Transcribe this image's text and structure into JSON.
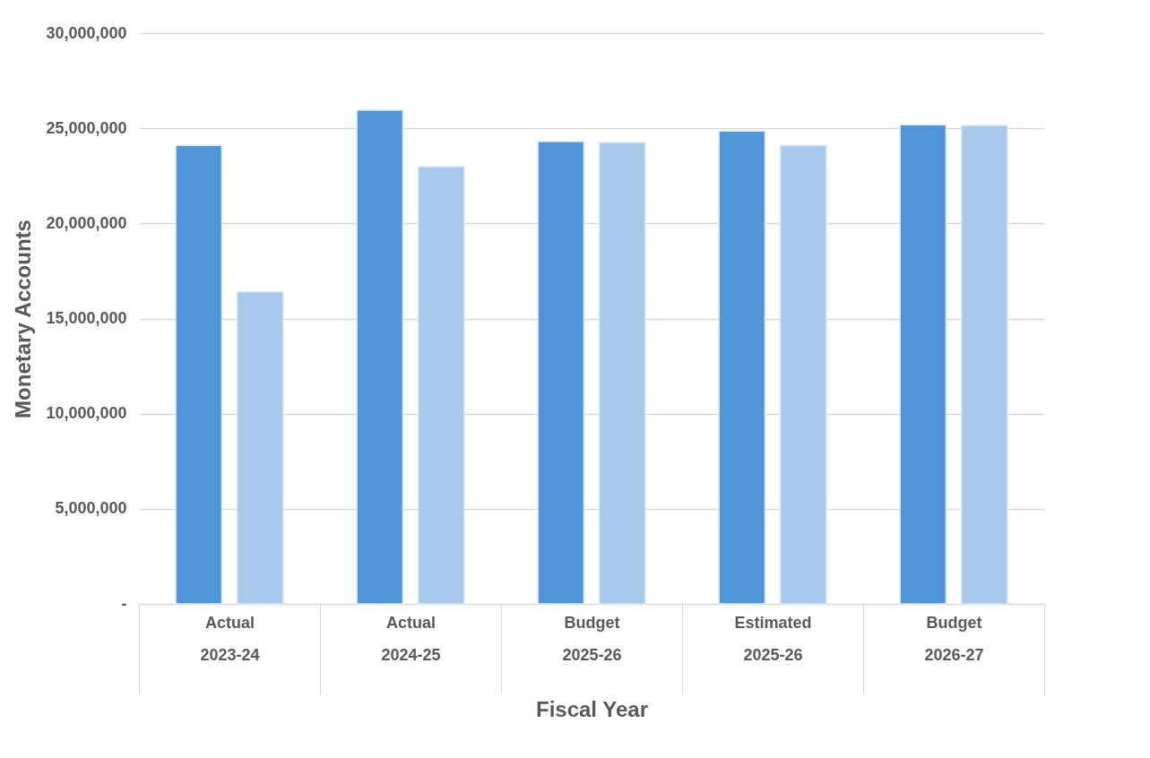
{
  "chart_data": {
    "type": "bar",
    "xlabel": "Fiscal Year",
    "ylabel": "Monetary Accounts",
    "categories": [
      "Actual\n2023-24",
      "Actual\n2024-25",
      "Budget\n2025-26",
      "Estimated\n2025-26",
      "Budget\n2026-27"
    ],
    "series": [
      {
        "color": "#4f96d8",
        "values": [
          24100000,
          25950000,
          24300000,
          24850000,
          25180000
        ]
      },
      {
        "color": "#a7caec",
        "values": [
          16400000,
          22980000,
          24250000,
          24100000,
          25150000
        ]
      }
    ],
    "ylim": [
      0,
      30000000
    ],
    "yticks": [
      {
        "value": 0,
        "label": "-"
      },
      {
        "value": 5000000,
        "label": "5,000,000"
      },
      {
        "value": 10000000,
        "label": "10,000,000"
      },
      {
        "value": 15000000,
        "label": "15,000,000"
      },
      {
        "value": 20000000,
        "label": "20,000,000"
      },
      {
        "value": 25000000,
        "label": "25,000,000"
      },
      {
        "value": 30000000,
        "label": "30,000,000"
      }
    ],
    "grid": "y",
    "legend": false
  }
}
